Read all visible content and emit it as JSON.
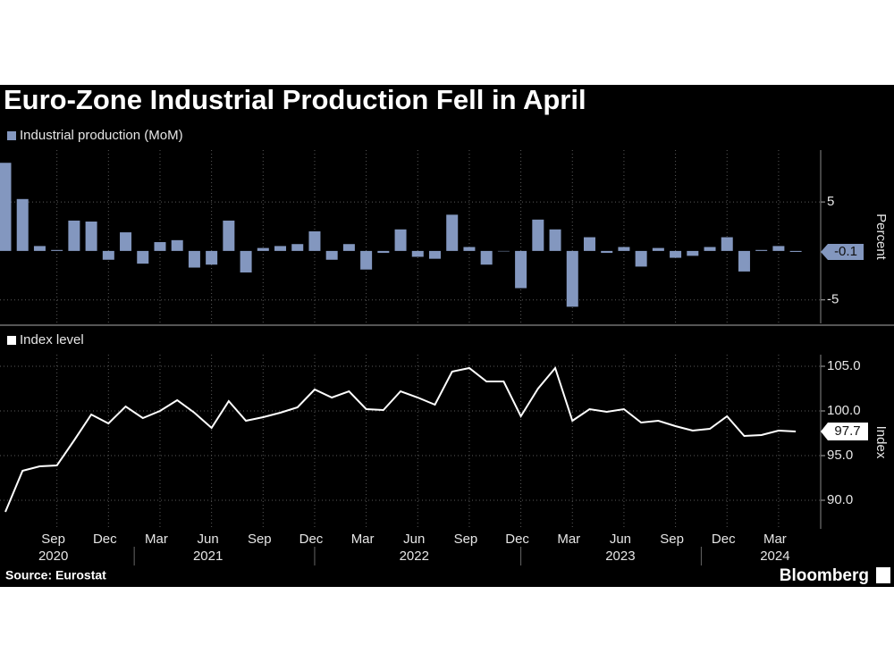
{
  "title": "Euro-Zone Industrial Production Fell in April",
  "source": "Source: Eurostat",
  "brand": "Bloomberg",
  "chart_data": [
    {
      "type": "bar",
      "y_label": "Percent",
      "series": [
        {
          "name": "Industrial production (MoM)",
          "color": "#8397bf",
          "values": [
            9.0,
            5.3,
            0.5,
            0.1,
            3.1,
            3.0,
            -0.9,
            1.9,
            -1.3,
            0.9,
            1.1,
            -1.7,
            -1.4,
            3.1,
            -2.2,
            0.3,
            0.5,
            0.7,
            2.0,
            -0.9,
            0.7,
            -1.9,
            -0.2,
            2.2,
            -0.6,
            -0.8,
            3.7,
            0.4,
            -1.4,
            0.0,
            -3.8,
            3.2,
            2.2,
            -5.7,
            1.4,
            -0.2,
            0.4,
            -1.6,
            0.3,
            -0.7,
            -0.5,
            0.4,
            1.4,
            -2.1,
            0.1,
            0.5,
            -0.1
          ]
        }
      ],
      "ylim": [
        -7.4,
        10.3
      ],
      "yticks": [
        -5,
        5
      ],
      "grid": true
    },
    {
      "type": "line",
      "y_label": "Index",
      "categories": [
        null,
        null,
        null,
        "Sep",
        null,
        null,
        "Dec",
        null,
        null,
        "Mar",
        null,
        null,
        "Jun",
        null,
        null,
        "Sep",
        null,
        null,
        "Dec",
        null,
        null,
        "Mar",
        null,
        null,
        "Jun",
        null,
        null,
        "Sep",
        null,
        null,
        "Dec",
        null,
        null,
        "Mar",
        null,
        null,
        "Jun",
        null,
        null,
        "Sep",
        null,
        null,
        "Dec",
        null,
        null,
        "Mar",
        null
      ],
      "years": [
        null,
        null,
        null,
        "2020",
        null,
        null,
        null,
        null,
        null,
        null,
        null,
        null,
        "2021",
        null,
        null,
        null,
        null,
        null,
        null,
        null,
        null,
        null,
        null,
        null,
        "2022",
        null,
        null,
        null,
        null,
        null,
        null,
        null,
        null,
        null,
        null,
        null,
        "2023",
        null,
        null,
        null,
        null,
        null,
        null,
        null,
        null,
        "2024",
        null
      ],
      "series": [
        {
          "name": "Index level",
          "color": "#ffffff",
          "values": [
            88.7,
            93.3,
            93.8,
            93.9,
            96.7,
            99.6,
            98.6,
            100.5,
            99.2,
            100.0,
            101.2,
            99.8,
            98.1,
            101.1,
            98.9,
            99.3,
            99.8,
            100.4,
            102.4,
            101.5,
            102.2,
            100.2,
            100.1,
            102.2,
            101.5,
            100.7,
            104.4,
            104.8,
            103.3,
            103.3,
            99.4,
            102.5,
            104.8,
            98.9,
            100.2,
            99.9,
            100.2,
            98.7,
            98.9,
            98.3,
            97.8,
            98.0,
            99.4,
            97.2,
            97.3,
            97.8,
            97.7
          ]
        }
      ],
      "ylim": [
        86.8,
        106.3
      ],
      "yticks": [
        {
          "value": 90,
          "label": "90.0"
        },
        {
          "value": 95,
          "label": "95.0"
        },
        {
          "value": 100,
          "label": "100.0"
        },
        {
          "value": 105,
          "label": "105.0"
        }
      ],
      "grid": true
    }
  ]
}
